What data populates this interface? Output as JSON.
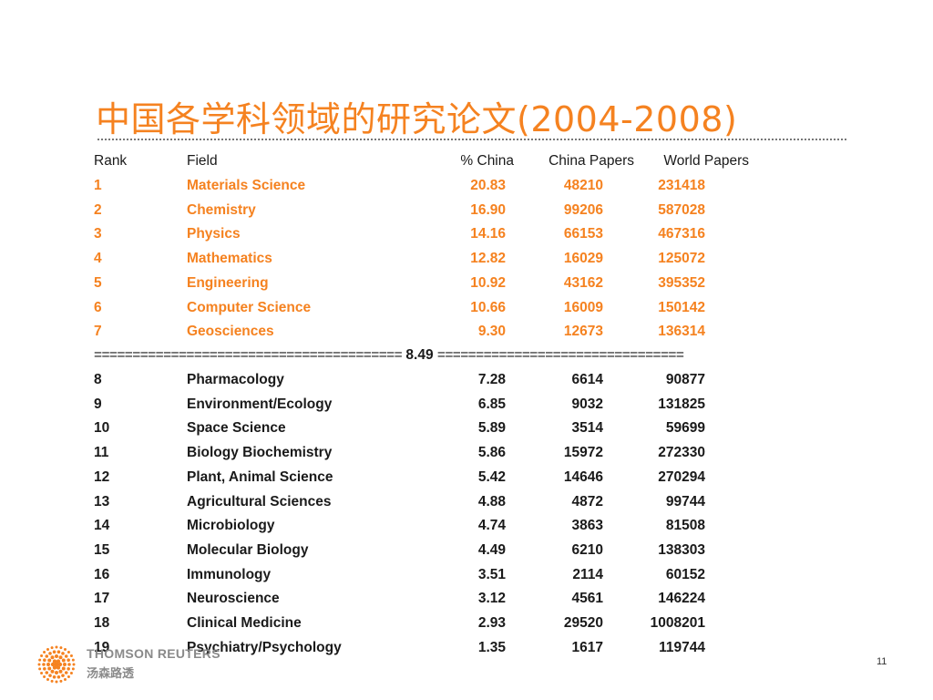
{
  "slide": {
    "title": "中国各学科领域的研究论文(2004-2008)",
    "page_number": "11"
  },
  "table": {
    "headers": {
      "rank": "Rank",
      "field": "Field",
      "pct_china": "% China",
      "china_papers": "China Papers",
      "world_papers": "World Papers"
    },
    "top_rows": [
      {
        "rank": "1",
        "field": "Materials Science",
        "pct": "20.83",
        "china": "48210",
        "world": "231418"
      },
      {
        "rank": "2",
        "field": "Chemistry",
        "pct": "16.90",
        "china": "99206",
        "world": "587028"
      },
      {
        "rank": "3",
        "field": "Physics",
        "pct": "14.16",
        "china": "66153",
        "world": "467316"
      },
      {
        "rank": "4",
        "field": "Mathematics",
        "pct": "12.82",
        "china": "16029",
        "world": "125072"
      },
      {
        "rank": "5",
        "field": "Engineering",
        "pct": "10.92",
        "china": "43162",
        "world": "395352"
      },
      {
        "rank": "6",
        "field": "Computer Science",
        "pct": "10.66",
        "china": "16009",
        "world": "150142"
      },
      {
        "rank": "7",
        "field": "Geosciences",
        "pct": "9.30",
        "china": "12673",
        "world": "136314"
      }
    ],
    "separator": {
      "left": "========================================",
      "value": "8.49",
      "right": "================================"
    },
    "bottom_rows": [
      {
        "rank": "8",
        "field": "Pharmacology",
        "pct": "7.28",
        "china": "6614",
        "world": "90877"
      },
      {
        "rank": "9",
        "field": "Environment/Ecology",
        "pct": "6.85",
        "china": "9032",
        "world": "131825"
      },
      {
        "rank": "10",
        "field": "Space Science",
        "pct": "5.89",
        "china": "3514",
        "world": "59699"
      },
      {
        "rank": "11",
        "field": "Biology Biochemistry",
        "pct": "5.86",
        "china": "15972",
        "world": "272330"
      },
      {
        "rank": "12",
        "field": "Plant, Animal Science",
        "pct": "5.42",
        "china": "14646",
        "world": "270294"
      },
      {
        "rank": "13",
        "field": "Agricultural Sciences",
        "pct": "4.88",
        "china": "4872",
        "world": "99744"
      },
      {
        "rank": "14",
        "field": "Microbiology",
        "pct": "4.74",
        "china": "3863",
        "world": "81508"
      },
      {
        "rank": "15",
        "field": "Molecular Biology",
        "pct": "4.49",
        "china": "6210",
        "world": "138303"
      },
      {
        "rank": "16",
        "field": "Immunology",
        "pct": "3.51",
        "china": "2114",
        "world": "60152"
      },
      {
        "rank": "17",
        "field": "Neuroscience",
        "pct": "3.12",
        "china": "4561",
        "world": "146224"
      },
      {
        "rank": "18",
        "field": "Clinical Medicine",
        "pct": "2.93",
        "china": "29520",
        "world": "1008201"
      },
      {
        "rank": "19",
        "field": "Psychiatry/Psychology",
        "pct": "1.35",
        "china": "1617",
        "world": "119744"
      }
    ]
  },
  "logo": {
    "name": "THOMSON REUTERS",
    "chinese_name": "汤森路透",
    "icon": "thomson-reuters-dot-logo-icon"
  },
  "colors": {
    "accent": "#f58220",
    "text": "#1a1a1a"
  }
}
